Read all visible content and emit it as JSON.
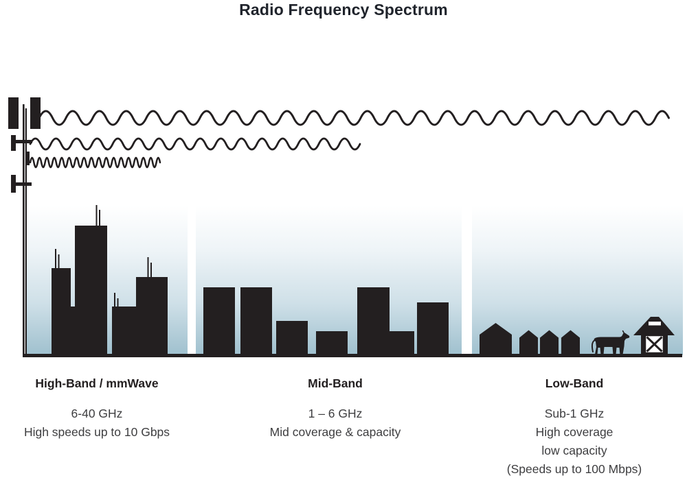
{
  "title": "Radio Frequency Spectrum",
  "bands": [
    {
      "id": "high-band",
      "heading": "High-Band / mmWave",
      "details": [
        "6-40 GHz",
        "High speeds up to 10 Gbps"
      ]
    },
    {
      "id": "mid-band",
      "heading": "Mid-Band",
      "details": [
        "1 – 6 GHz",
        "Mid coverage & capacity"
      ]
    },
    {
      "id": "low-band",
      "heading": "Low-Band",
      "details": [
        "Sub-1 GHz",
        "High coverage",
        "low capacity",
        "(Speeds up to 100 Mbps)"
      ]
    }
  ],
  "icons": [
    "cell-tower-icon",
    "long-wave-icon",
    "medium-wave-icon",
    "short-wave-icon",
    "city-skyline-icon",
    "suburb-buildings-icon",
    "rural-houses-icon",
    "cow-icon",
    "barn-icon",
    "ground-line"
  ],
  "colors": {
    "ink": "#231f20",
    "sky_top": "#ffffff",
    "sky_bottom": "#9fc0ce"
  }
}
